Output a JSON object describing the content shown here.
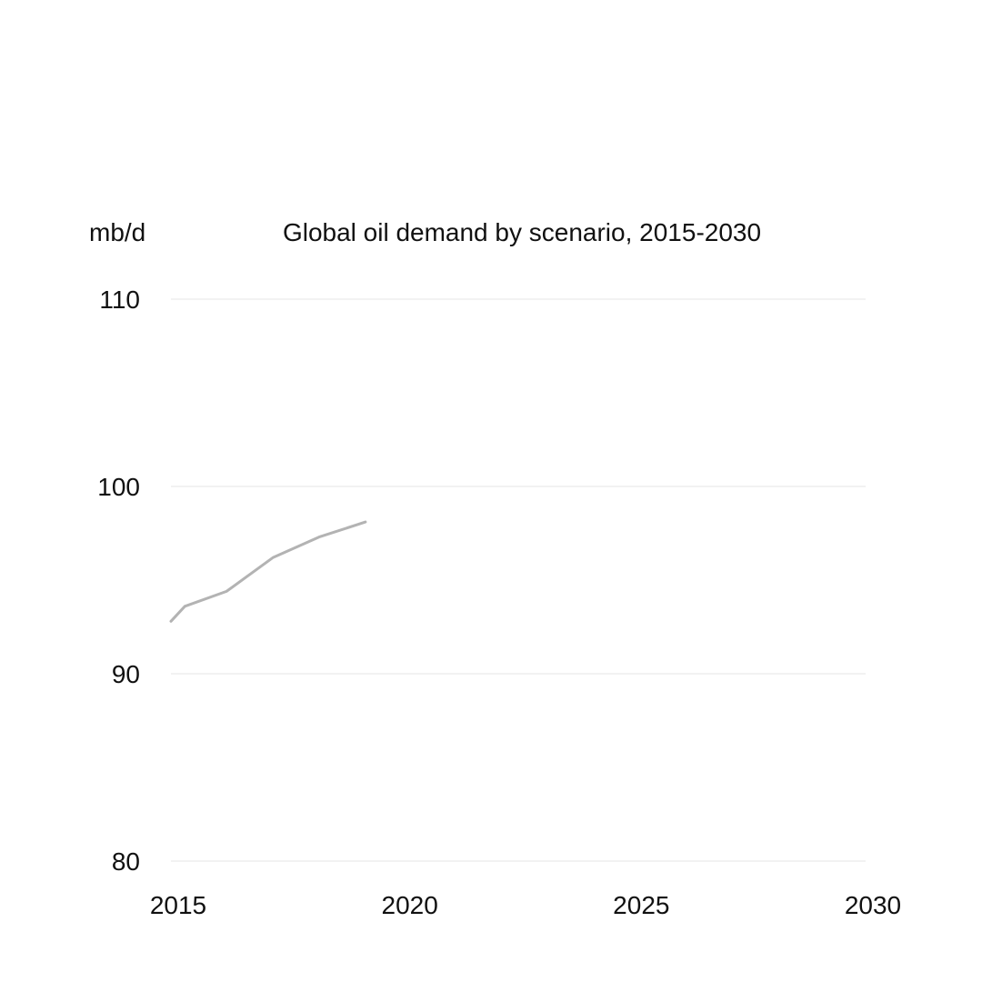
{
  "chart_data": {
    "type": "line",
    "title": "Global oil demand by scenario, 2015-2030",
    "ylabel": "mb/d",
    "xlabel": "",
    "xlim": [
      2015,
      2030
    ],
    "ylim": [
      80,
      110
    ],
    "x_ticks": [
      2015,
      2020,
      2025,
      2030
    ],
    "y_ticks": [
      80,
      90,
      100,
      110
    ],
    "grid": true,
    "series": [
      {
        "color": "#b3b3b3",
        "x": [
          2015,
          2015.3,
          2016.2,
          2017.2,
          2018.2,
          2019.2
        ],
        "values": [
          92.8,
          93.6,
          94.4,
          96.2,
          97.3,
          98.1
        ]
      }
    ]
  }
}
